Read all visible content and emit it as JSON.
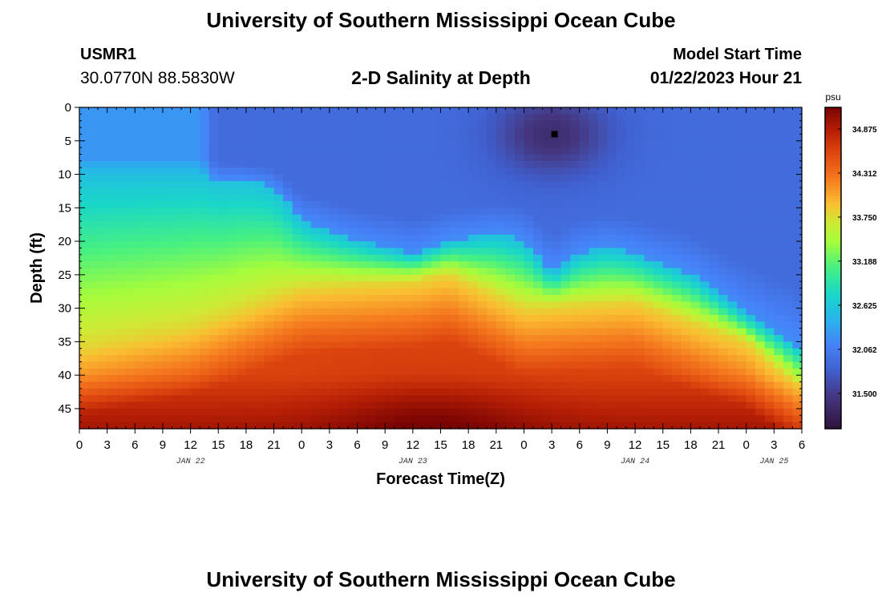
{
  "header": {
    "title": "University of Southern Mississippi Ocean Cube",
    "station_id": "USMR1",
    "station_location": "30.0770N  88.5830W",
    "plot_title": "2-D Salinity at Depth",
    "model_label": "Model Start Time",
    "model_time": "01/22/2023 Hour 21"
  },
  "footer": {
    "title": "University of Southern Mississippi Ocean Cube"
  },
  "colors": {
    "marker": "#000000"
  },
  "chart_data": {
    "type": "heatmap",
    "title": "2-D Salinity at Depth",
    "xlabel": "Forecast Time(Z)",
    "ylabel": "Depth (ft)",
    "xlim_hours": [
      0,
      78
    ],
    "ylim": [
      0,
      48
    ],
    "x_tick_hours": [
      0,
      3,
      6,
      9,
      12,
      15,
      18,
      21,
      24,
      27,
      30,
      33,
      36,
      39,
      42,
      45,
      48,
      51,
      54,
      57,
      60,
      63,
      66,
      69,
      72,
      75,
      78
    ],
    "x_tick_labels": [
      "0",
      "3",
      "6",
      "9",
      "12",
      "15",
      "18",
      "21",
      "0",
      "3",
      "6",
      "9",
      "12",
      "15",
      "18",
      "21",
      "0",
      "3",
      "6",
      "9",
      "12",
      "15",
      "18",
      "21",
      "0",
      "3",
      "6"
    ],
    "day_labels": [
      {
        "hour": 12,
        "label": "JAN 22"
      },
      {
        "hour": 36,
        "label": "JAN 23"
      },
      {
        "hour": 60,
        "label": "JAN 24"
      },
      {
        "hour": 75,
        "label": "JAN 25"
      }
    ],
    "y_ticks": [
      0,
      5,
      10,
      15,
      20,
      25,
      30,
      35,
      40,
      45
    ],
    "colorbar": {
      "unit": "psu",
      "range": [
        31.05,
        35.15
      ],
      "tick_values": [
        31.5,
        32.062,
        32.625,
        33.188,
        33.75,
        34.312,
        34.875
      ],
      "tick_labels": [
        "31.500",
        "32.062",
        "32.625",
        "33.188",
        "33.750",
        "34.312",
        "34.875"
      ]
    },
    "salinity_profile": {
      "hours": [
        0,
        6,
        12,
        13,
        15,
        18,
        21,
        24,
        30,
        36,
        40,
        45,
        48,
        51,
        54,
        57,
        60,
        66,
        72,
        78
      ],
      "interface_depth_ft": [
        10,
        10,
        10,
        10,
        11,
        11,
        12,
        17,
        20,
        22,
        20,
        19,
        20,
        25,
        22,
        21,
        22,
        25,
        31,
        36
      ],
      "bottom_hours": [
        0,
        12,
        24,
        36,
        40,
        48,
        60,
        72,
        78
      ],
      "bottom_depth_ft": [
        36,
        33,
        27,
        26,
        25,
        30,
        29,
        35,
        42
      ]
    },
    "marker": {
      "hour": 51.3,
      "depth_ft": 4
    }
  }
}
